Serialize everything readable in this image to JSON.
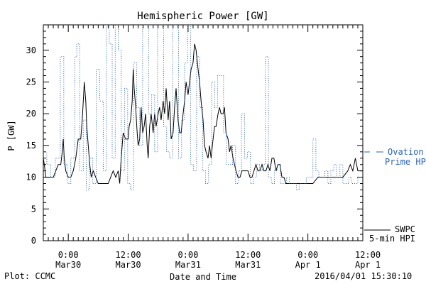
{
  "chart_data": {
    "type": "line",
    "title": "Hemispheric Power [GW]",
    "xlabel": "Date and Time",
    "ylabel": "P [GW]",
    "ylim": [
      0,
      34
    ],
    "yticks": [
      0,
      5,
      10,
      15,
      20,
      25,
      30
    ],
    "xlim_hours": [
      -5,
      59
    ],
    "xticks": [
      {
        "hour": 0,
        "line1": "0:00",
        "line2": "Mar30"
      },
      {
        "hour": 12,
        "line1": "12:00",
        "line2": "Mar30"
      },
      {
        "hour": 24,
        "line1": "0:00",
        "line2": "Mar31"
      },
      {
        "hour": 36,
        "line1": "12:00",
        "line2": "Mar31"
      },
      {
        "hour": 48,
        "line1": "0:00",
        "line2": "Apr 1"
      },
      {
        "hour": 60,
        "line1": "12:00",
        "line2": "Apr 1"
      }
    ],
    "x_tick_hours_note_offset": -5,
    "series": [
      {
        "name": "SWPC 5-min HPI",
        "legend_line1": "SWPC",
        "legend_line2": "5-min HPI",
        "color": "#000000",
        "style": "solid",
        "points": [
          [
            -5.0,
            13
          ],
          [
            -4.8,
            12
          ],
          [
            -4.5,
            10
          ],
          [
            -4.0,
            10
          ],
          [
            -3.0,
            10
          ],
          [
            -2.5,
            11
          ],
          [
            -2.0,
            12
          ],
          [
            -1.5,
            12
          ],
          [
            -1.2,
            14
          ],
          [
            -1.0,
            16
          ],
          [
            -0.8,
            13
          ],
          [
            -0.5,
            11
          ],
          [
            0.0,
            10
          ],
          [
            0.5,
            10
          ],
          [
            1.0,
            11
          ],
          [
            1.5,
            13
          ],
          [
            2.0,
            16
          ],
          [
            2.5,
            16
          ],
          [
            2.8,
            19
          ],
          [
            3.0,
            22
          ],
          [
            3.2,
            25
          ],
          [
            3.5,
            22
          ],
          [
            3.7,
            18
          ],
          [
            4.0,
            15
          ],
          [
            4.3,
            12
          ],
          [
            4.6,
            10
          ],
          [
            5.0,
            11
          ],
          [
            5.5,
            10
          ],
          [
            6.0,
            9
          ],
          [
            6.5,
            9
          ],
          [
            7.0,
            9
          ],
          [
            7.5,
            9
          ],
          [
            8.0,
            9
          ],
          [
            8.5,
            10
          ],
          [
            9.0,
            11
          ],
          [
            9.5,
            10
          ],
          [
            10.0,
            11
          ],
          [
            10.3,
            9
          ],
          [
            10.6,
            13
          ],
          [
            11.0,
            17
          ],
          [
            11.5,
            16
          ],
          [
            12.0,
            16
          ],
          [
            12.2,
            18
          ],
          [
            12.5,
            19
          ],
          [
            12.8,
            22
          ],
          [
            13.0,
            27
          ],
          [
            13.2,
            24
          ],
          [
            13.5,
            21
          ],
          [
            13.8,
            17
          ],
          [
            14.0,
            15
          ],
          [
            14.3,
            16
          ],
          [
            14.6,
            21
          ],
          [
            14.9,
            17
          ],
          [
            15.2,
            18
          ],
          [
            15.5,
            20
          ],
          [
            15.8,
            15
          ],
          [
            16.0,
            13
          ],
          [
            16.3,
            18
          ],
          [
            16.6,
            20
          ],
          [
            17.0,
            17
          ],
          [
            17.3,
            20
          ],
          [
            17.6,
            18
          ],
          [
            18.0,
            20
          ],
          [
            18.3,
            21
          ],
          [
            18.6,
            19
          ],
          [
            19.0,
            22
          ],
          [
            19.3,
            20
          ],
          [
            19.6,
            24
          ],
          [
            20.0,
            19
          ],
          [
            20.3,
            22
          ],
          [
            20.6,
            16
          ],
          [
            21.0,
            17
          ],
          [
            21.3,
            21
          ],
          [
            21.6,
            24
          ],
          [
            22.0,
            19
          ],
          [
            22.3,
            17
          ],
          [
            22.6,
            17
          ],
          [
            23.0,
            20
          ],
          [
            23.3,
            22
          ],
          [
            23.6,
            25
          ],
          [
            24.0,
            23
          ],
          [
            24.3,
            25
          ],
          [
            24.6,
            27
          ],
          [
            25.0,
            28
          ],
          [
            25.3,
            31
          ],
          [
            25.6,
            30
          ],
          [
            26.0,
            27
          ],
          [
            26.3,
            25
          ],
          [
            26.6,
            22
          ],
          [
            27.0,
            19
          ],
          [
            27.3,
            15
          ],
          [
            27.6,
            14
          ],
          [
            28.0,
            13
          ],
          [
            28.3,
            15
          ],
          [
            28.6,
            13
          ],
          [
            29.0,
            16
          ],
          [
            29.3,
            18
          ],
          [
            29.6,
            18
          ],
          [
            30.0,
            20
          ],
          [
            30.3,
            21
          ],
          [
            30.6,
            20
          ],
          [
            31.0,
            20
          ],
          [
            31.3,
            21
          ],
          [
            31.6,
            17
          ],
          [
            32.0,
            16
          ],
          [
            32.3,
            14
          ],
          [
            32.6,
            15
          ],
          [
            33.0,
            13
          ],
          [
            33.3,
            12
          ],
          [
            33.6,
            11
          ],
          [
            34.0,
            10
          ],
          [
            34.4,
            10
          ],
          [
            34.8,
            11
          ],
          [
            35.2,
            11
          ],
          [
            35.6,
            11
          ],
          [
            36.0,
            11
          ],
          [
            36.4,
            10
          ],
          [
            36.8,
            10
          ],
          [
            37.2,
            11
          ],
          [
            37.6,
            12
          ],
          [
            38.0,
            11
          ],
          [
            38.4,
            11
          ],
          [
            38.8,
            12
          ],
          [
            39.2,
            11
          ],
          [
            39.6,
            11
          ],
          [
            40.0,
            12
          ],
          [
            40.4,
            11
          ],
          [
            40.8,
            13
          ],
          [
            41.2,
            13
          ],
          [
            41.6,
            11
          ],
          [
            42.0,
            12
          ],
          [
            42.4,
            12
          ],
          [
            42.8,
            10
          ],
          [
            43.2,
            10
          ],
          [
            43.6,
            9
          ],
          [
            44.0,
            9
          ],
          [
            45.0,
            9
          ],
          [
            46.0,
            9
          ],
          [
            47.0,
            9
          ],
          [
            48.0,
            9
          ],
          [
            49.0,
            9
          ],
          [
            50.0,
            10
          ],
          [
            51.0,
            10
          ],
          [
            52.0,
            10
          ],
          [
            53.0,
            10
          ],
          [
            54.0,
            10
          ],
          [
            55.0,
            10
          ],
          [
            56.0,
            11
          ],
          [
            56.5,
            12
          ],
          [
            57.0,
            11
          ],
          [
            57.5,
            13
          ],
          [
            58.0,
            11
          ],
          [
            58.5,
            11
          ],
          [
            59.0,
            11
          ]
        ]
      },
      {
        "name": "Ovation Prime HPI",
        "legend_line1": "Ovation",
        "legend_line2": "Prime HPI",
        "color": "#2a62c4",
        "style": "dotted",
        "steps": [
          [
            -5.0,
            14
          ],
          [
            -4.3,
            12
          ],
          [
            -3.5,
            10
          ],
          [
            -2.6,
            13
          ],
          [
            -1.6,
            29
          ],
          [
            -0.9,
            12
          ],
          [
            -0.2,
            9
          ],
          [
            0.5,
            13
          ],
          [
            1.3,
            29
          ],
          [
            1.7,
            31
          ],
          [
            2.3,
            11
          ],
          [
            3.0,
            19
          ],
          [
            3.6,
            8
          ],
          [
            4.2,
            13
          ],
          [
            4.9,
            9
          ],
          [
            5.6,
            27
          ],
          [
            6.3,
            22
          ],
          [
            7.0,
            11
          ],
          [
            7.6,
            34
          ],
          [
            8.2,
            31
          ],
          [
            8.8,
            13
          ],
          [
            9.4,
            34
          ],
          [
            10.0,
            30
          ],
          [
            10.6,
            11
          ],
          [
            11.3,
            24
          ],
          [
            11.9,
            9
          ],
          [
            12.5,
            8
          ],
          [
            13.1,
            28
          ],
          [
            13.7,
            21
          ],
          [
            14.3,
            15
          ],
          [
            14.9,
            34
          ],
          [
            15.5,
            34
          ],
          [
            16.1,
            20
          ],
          [
            16.7,
            23
          ],
          [
            17.3,
            14
          ],
          [
            17.9,
            34
          ],
          [
            18.5,
            34
          ],
          [
            19.1,
            18
          ],
          [
            19.7,
            14
          ],
          [
            20.3,
            13
          ],
          [
            20.9,
            34
          ],
          [
            21.5,
            34
          ],
          [
            22.1,
            13
          ],
          [
            22.7,
            19
          ],
          [
            23.3,
            28
          ],
          [
            23.9,
            34
          ],
          [
            24.5,
            12
          ],
          [
            25.1,
            11
          ],
          [
            25.7,
            29
          ],
          [
            26.3,
            21
          ],
          [
            26.9,
            11
          ],
          [
            27.5,
            9
          ],
          [
            28.1,
            12
          ],
          [
            28.7,
            25
          ],
          [
            29.3,
            21
          ],
          [
            29.9,
            26
          ],
          [
            30.5,
            26
          ],
          [
            31.1,
            17
          ],
          [
            31.7,
            12
          ],
          [
            32.3,
            12
          ],
          [
            32.9,
            15
          ],
          [
            33.5,
            9
          ],
          [
            34.1,
            11
          ],
          [
            34.7,
            20
          ],
          [
            35.3,
            13
          ],
          [
            35.9,
            14
          ],
          [
            36.5,
            9
          ],
          [
            37.1,
            10
          ],
          [
            37.7,
            12
          ],
          [
            38.3,
            11
          ],
          [
            38.9,
            12
          ],
          [
            39.5,
            29
          ],
          [
            40.1,
            10
          ],
          [
            40.7,
            9
          ],
          [
            41.3,
            11
          ],
          [
            41.9,
            12
          ],
          [
            42.5,
            9
          ],
          [
            43.1,
            9
          ],
          [
            43.7,
            10
          ],
          [
            44.3,
            9
          ],
          [
            45.0,
            9
          ],
          [
            45.7,
            8
          ],
          [
            46.3,
            9
          ],
          [
            47.0,
            9
          ],
          [
            47.7,
            10
          ],
          [
            48.3,
            10
          ],
          [
            49.0,
            16
          ],
          [
            49.6,
            11
          ],
          [
            50.2,
            10
          ],
          [
            50.8,
            10
          ],
          [
            51.4,
            11
          ],
          [
            52.0,
            9
          ],
          [
            52.6,
            11
          ],
          [
            53.2,
            12
          ],
          [
            53.8,
            10
          ],
          [
            54.4,
            12
          ],
          [
            55.0,
            9
          ],
          [
            55.6,
            9
          ],
          [
            56.2,
            10
          ],
          [
            56.8,
            9
          ],
          [
            57.4,
            9
          ],
          [
            58.0,
            10
          ],
          [
            59.0,
            10
          ]
        ]
      }
    ],
    "legend_placement": "right"
  },
  "footer": {
    "left": "Plot: CCMC",
    "right": "2016/04/01 15:30:10"
  }
}
